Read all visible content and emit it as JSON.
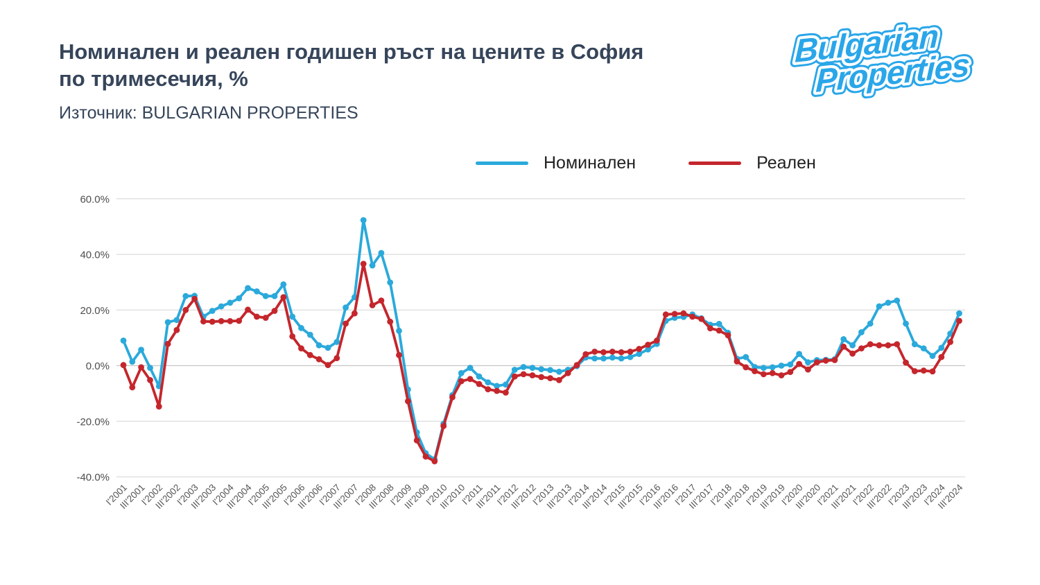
{
  "header": {
    "title_line1": "Номинален и реален годишен ръст на цените в София",
    "title_line2": "по тримесечия, %",
    "source": "Източник: BULGARIAN PROPERTIES"
  },
  "logo": {
    "line1": "Bulgarian",
    "line2": "Properties",
    "color": "#2aa6e9"
  },
  "colors": {
    "title": "#36455a",
    "nominal": "#2ba9db",
    "real": "#c4262c",
    "grid": "#dcdcdc",
    "zero_line": "#c4c4c4",
    "axis_text": "#555555"
  },
  "chart_data": {
    "type": "line",
    "title": "Номинален и реален годишен ръст на цените в София по тримесечия, %",
    "grid": true,
    "legend_position": "top",
    "ylim": [
      -40,
      60
    ],
    "yticks": [
      60,
      40,
      20,
      0,
      -20,
      -40
    ],
    "ytick_suffix": "%",
    "x_tick_every": 2,
    "categories": [
      "I'2001",
      "II'2001",
      "III'2001",
      "IV'2001",
      "I'2002",
      "II'2002",
      "III'2002",
      "IV'2002",
      "I'2003",
      "II'2003",
      "III'2003",
      "IV'2003",
      "I'2004",
      "II'2004",
      "III'2004",
      "IV'2004",
      "I'2005",
      "II'2005",
      "III'2005",
      "IV'2005",
      "I'2006",
      "II'2006",
      "III'2006",
      "IV'2006",
      "I'2007",
      "II'2007",
      "III'2007",
      "IV'2007",
      "I'2008",
      "II'2008",
      "III'2008",
      "IV'2008",
      "I'2009",
      "II'2009",
      "III'2009",
      "IV'2009",
      "I'2010",
      "II'2010",
      "III'2010",
      "IV'2010",
      "I'2011",
      "II'2011",
      "III'2011",
      "IV'2011",
      "I'2012",
      "II'2012",
      "III'2012",
      "IV'2012",
      "I'2013",
      "II'2013",
      "III'2013",
      "IV'2013",
      "I'2014",
      "II'2014",
      "III'2014",
      "IV'2014",
      "I'2015",
      "II'2015",
      "III'2015",
      "IV'2015",
      "I'2016",
      "II'2016",
      "III'2016",
      "IV'2016",
      "I'2017",
      "II'2017",
      "III'2017",
      "IV'2017",
      "I'2018",
      "II'2018",
      "III'2018",
      "IV'2018",
      "I'2019",
      "II'2019",
      "III'2019",
      "IV'2019",
      "I'2020",
      "II'2020",
      "III'2020",
      "IV'2020",
      "I'2021",
      "II'2021",
      "III'2021",
      "IV'2021",
      "I'2022",
      "II'2022",
      "III'2022",
      "IV'2022",
      "I'2023",
      "II'2023",
      "III'2023",
      "IV'2023",
      "I'2024",
      "II'2024",
      "III'2024"
    ],
    "series": [
      {
        "name": "Номинален",
        "color": "#2ba9db",
        "values": [
          9.0,
          1.4,
          5.7,
          -0.8,
          -7.4,
          15.6,
          16.4,
          25.0,
          25.1,
          17.6,
          19.7,
          21.3,
          22.6,
          24.2,
          27.9,
          26.7,
          25.0,
          25.0,
          29.2,
          17.6,
          13.5,
          11.1,
          7.3,
          6.4,
          8.5,
          20.9,
          24.6,
          52.3,
          36.0,
          40.5,
          29.9,
          12.5,
          -8.6,
          -24.0,
          -31.5,
          -33.7,
          -20.9,
          -10.6,
          -2.7,
          -0.8,
          -3.9,
          -6.0,
          -7.3,
          -6.8,
          -1.5,
          -0.5,
          -0.8,
          -1.3,
          -1.6,
          -2.2,
          -1.5,
          -0.2,
          2.9,
          2.6,
          2.6,
          2.9,
          2.6,
          3.1,
          4.2,
          5.8,
          7.8,
          16.1,
          17.2,
          17.5,
          18.4,
          17.0,
          14.7,
          15.0,
          11.8,
          2.5,
          3.1,
          -0.5,
          -0.8,
          -0.6,
          0.0,
          0.4,
          4.2,
          1.2,
          2.0,
          2.1,
          2.3,
          9.5,
          7.3,
          12.0,
          15.1,
          21.3,
          22.6,
          23.4,
          15.1,
          7.7,
          6.2,
          3.5,
          6.4,
          11.5,
          18.8
        ]
      },
      {
        "name": "Реален",
        "color": "#c4262c",
        "values": [
          0.2,
          -7.8,
          -0.6,
          -5.2,
          -14.7,
          7.8,
          12.8,
          20.0,
          24.0,
          15.9,
          15.8,
          16.0,
          16.0,
          16.1,
          20.1,
          17.6,
          17.2,
          19.7,
          24.6,
          10.5,
          6.2,
          3.8,
          2.3,
          0.2,
          2.7,
          15.1,
          18.8,
          36.6,
          21.7,
          23.4,
          15.8,
          3.8,
          -12.8,
          -26.9,
          -32.7,
          -34.4,
          -21.7,
          -11.4,
          -5.6,
          -4.8,
          -6.6,
          -8.5,
          -9.1,
          -9.7,
          -3.9,
          -3.1,
          -3.5,
          -4.1,
          -4.5,
          -5.2,
          -2.7,
          0.2,
          4.1,
          5.0,
          4.8,
          5.0,
          4.8,
          5.0,
          6.0,
          7.5,
          9.0,
          18.4,
          18.6,
          18.8,
          17.6,
          16.8,
          13.4,
          12.6,
          10.9,
          1.5,
          -0.6,
          -2.0,
          -3.1,
          -2.7,
          -3.5,
          -2.3,
          0.6,
          -1.4,
          1.2,
          1.8,
          2.0,
          6.8,
          4.3,
          6.2,
          7.7,
          7.3,
          7.3,
          7.7,
          1.1,
          -2.0,
          -1.8,
          -2.1,
          3.1,
          8.5,
          16.1
        ]
      }
    ]
  }
}
